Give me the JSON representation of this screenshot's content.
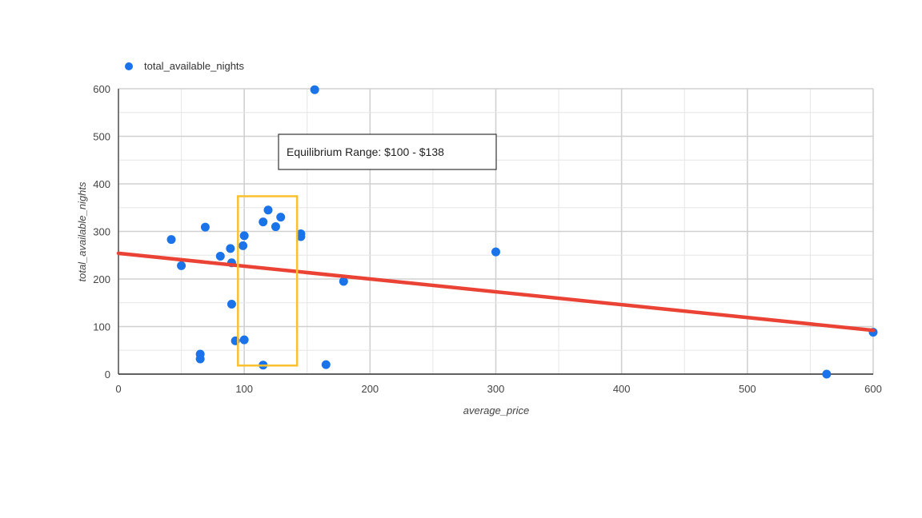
{
  "chart_data": {
    "type": "scatter",
    "title": "",
    "xlabel": "average_price",
    "ylabel": "total_available_nights",
    "xlim": [
      0,
      600
    ],
    "ylim": [
      0,
      600
    ],
    "x_ticks": [
      "0",
      "100",
      "200",
      "300",
      "400",
      "500",
      "600"
    ],
    "y_ticks": [
      "0",
      "100",
      "200",
      "300",
      "400",
      "500",
      "600"
    ],
    "grid": true,
    "legend": {
      "placement": "top-left",
      "entries": [
        "total_available_nights"
      ]
    },
    "series": [
      {
        "name": "total_available_nights",
        "color": "#1a73e8",
        "points": [
          {
            "x": 42,
            "y": 283
          },
          {
            "x": 50,
            "y": 228
          },
          {
            "x": 65,
            "y": 42
          },
          {
            "x": 65,
            "y": 32
          },
          {
            "x": 69,
            "y": 309
          },
          {
            "x": 81,
            "y": 248
          },
          {
            "x": 89,
            "y": 264
          },
          {
            "x": 90,
            "y": 234
          },
          {
            "x": 90,
            "y": 147
          },
          {
            "x": 93,
            "y": 70
          },
          {
            "x": 99,
            "y": 270
          },
          {
            "x": 100,
            "y": 291
          },
          {
            "x": 100,
            "y": 72
          },
          {
            "x": 115,
            "y": 320
          },
          {
            "x": 115,
            "y": 19
          },
          {
            "x": 119,
            "y": 345
          },
          {
            "x": 125,
            "y": 310
          },
          {
            "x": 129,
            "y": 330
          },
          {
            "x": 145,
            "y": 295
          },
          {
            "x": 145,
            "y": 289
          },
          {
            "x": 156,
            "y": 598
          },
          {
            "x": 165,
            "y": 20
          },
          {
            "x": 179,
            "y": 195
          },
          {
            "x": 300,
            "y": 257
          },
          {
            "x": 563,
            "y": 0
          },
          {
            "x": 600,
            "y": 88
          }
        ]
      }
    ],
    "trendline": {
      "color": "#ea4335",
      "x0": 0,
      "y0": 254,
      "x1": 600,
      "y1": 92
    },
    "highlight": {
      "color": "#fbc02d",
      "x_from": 95,
      "x_to": 142,
      "y_from": 18,
      "y_to": 374
    },
    "annotation": {
      "text": "Equilibrium Range: $100 - $138"
    }
  }
}
